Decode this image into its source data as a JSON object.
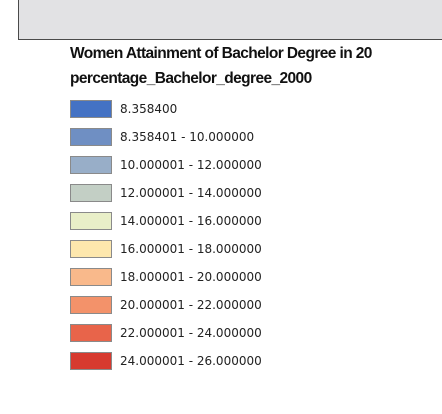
{
  "legend": {
    "title": "Women Attainment of Bachelor Degree in 20",
    "field": "percentage_Bachelor_degree_2000",
    "classes": [
      {
        "label": "8.358400",
        "color": "#4472c4"
      },
      {
        "label": "8.358401 - 10.000000",
        "color": "#6f8fc3"
      },
      {
        "label": "10.000001 - 12.000000",
        "color": "#98aec8"
      },
      {
        "label": "12.000001 - 14.000000",
        "color": "#c3cfc5"
      },
      {
        "label": "14.000001 - 16.000000",
        "color": "#e9efc8"
      },
      {
        "label": "16.000001 - 18.000000",
        "color": "#fde7ad"
      },
      {
        "label": "18.000001 - 20.000000",
        "color": "#f9b98b"
      },
      {
        "label": "20.000001 - 22.000000",
        "color": "#f3926a"
      },
      {
        "label": "22.000001 - 24.000000",
        "color": "#e8644a"
      },
      {
        "label": "24.000001 - 26.000000",
        "color": "#d73a2f"
      }
    ]
  }
}
